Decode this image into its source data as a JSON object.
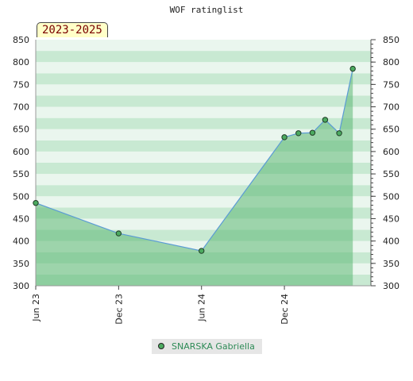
{
  "title": "WOF ratinglist",
  "period_label": "2023-2025",
  "colors": {
    "band_light": "#eaf6ee",
    "band_dark": "#c8e9d2",
    "area_fill": "#5cb874",
    "line": "#5b9bd5",
    "marker": "#4caa60"
  },
  "chart_data": {
    "type": "area",
    "title": "WOF ratinglist",
    "xlabel": "",
    "ylabel": "",
    "ylim": [
      300,
      850
    ],
    "yticks": [
      300,
      350,
      400,
      450,
      500,
      550,
      600,
      650,
      700,
      750,
      800,
      850
    ],
    "xlim": [
      "2023-06-01",
      "2025-06-10"
    ],
    "xticks": [
      {
        "date": "2023-06-01",
        "label": "Jun 23"
      },
      {
        "date": "2023-12-01",
        "label": "Dec 23"
      },
      {
        "date": "2024-06-01",
        "label": "Jun 24"
      },
      {
        "date": "2024-12-01",
        "label": "Dec 24"
      }
    ],
    "grid": "horizontal bands",
    "legend_position": "bottom-center",
    "series": [
      {
        "name": "SNARSKA Gabriella",
        "points": [
          {
            "x": "2023-06-01",
            "y": 485
          },
          {
            "x": "2023-12-01",
            "y": 417
          },
          {
            "x": "2024-06-01",
            "y": 378
          },
          {
            "x": "2024-12-01",
            "y": 632
          },
          {
            "x": "2025-01-01",
            "y": 641
          },
          {
            "x": "2025-02-01",
            "y": 642
          },
          {
            "x": "2025-03-01",
            "y": 671
          },
          {
            "x": "2025-04-01",
            "y": 641
          },
          {
            "x": "2025-05-01",
            "y": 785
          }
        ]
      }
    ]
  }
}
